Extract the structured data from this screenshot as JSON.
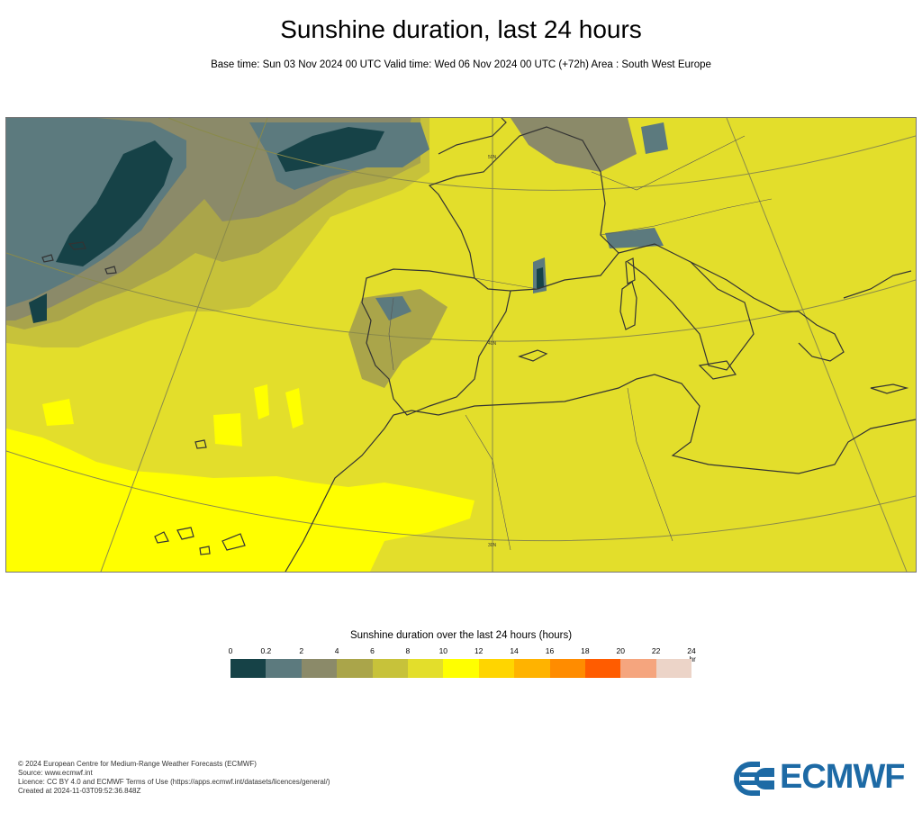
{
  "header": {
    "title": "Sunshine duration, last 24 hours",
    "subtitle": "Base time: Sun 03 Nov 2024 00 UTC Valid time: Wed 06 Nov 2024 00 UTC (+72h) Area : South West Europe"
  },
  "map": {
    "gridline_labels": [
      "50N",
      "40N",
      "30N"
    ]
  },
  "legend": {
    "title": "Sunshine duration over the last 24 hours (hours)",
    "ticks": [
      "0",
      "0.2",
      "2",
      "4",
      "6",
      "8",
      "10",
      "12",
      "14",
      "16",
      "18",
      "20",
      "22",
      "24"
    ],
    "unit": "-hr",
    "colors": [
      "#164247",
      "#5c7a7e",
      "#8b8a69",
      "#aaa54a",
      "#c7c23a",
      "#e3de2b",
      "#ffff00",
      "#ffd500",
      "#ffb300",
      "#ff8c00",
      "#ff5c00",
      "#f5a57e",
      "#ecd4c8"
    ]
  },
  "footer": {
    "line1": "© 2024 European Centre for Medium-Range Weather Forecasts (ECMWF)",
    "line2": "Source: www.ecmwf.int",
    "line3": "Licence: CC BY 4.0 and ECMWF Terms of Use (https://apps.ecmwf.int/datasets/licences/general/)",
    "line4": "Created at 2024-11-03T09:52:36.848Z"
  },
  "logo": {
    "text": "ECMWF",
    "color": "#1d6aa5"
  }
}
